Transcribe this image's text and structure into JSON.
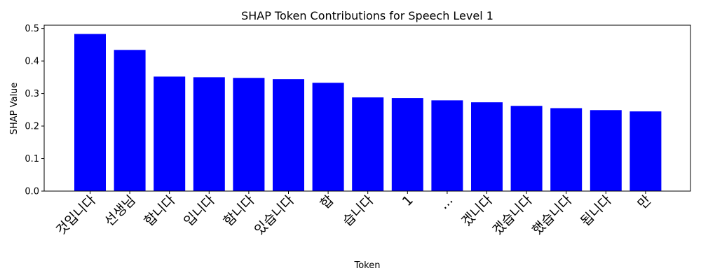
{
  "chart_data": {
    "type": "bar",
    "title": "SHAP Token Contributions for Speech Level 1",
    "xlabel": "Token",
    "ylabel": "SHAP Value",
    "categories": [
      "것입니다",
      "선생님",
      "합니다",
      "입니다",
      "함니다",
      "있습니다",
      "합",
      "습니다",
      "1",
      "...",
      "겠니다",
      "겠습니다",
      "했습니다",
      "됩니다",
      "만"
    ],
    "values": [
      0.483,
      0.434,
      0.352,
      0.35,
      0.348,
      0.344,
      0.333,
      0.288,
      0.286,
      0.279,
      0.273,
      0.262,
      0.255,
      0.249,
      0.245
    ],
    "ylim": [
      0,
      0.51
    ],
    "yticks": [
      0.0,
      0.1,
      0.2,
      0.3,
      0.4,
      0.5
    ],
    "ytick_labels": [
      "0.0",
      "0.1",
      "0.2",
      "0.3",
      "0.4",
      "0.5"
    ],
    "bar_color": "#0000ff",
    "grid": false,
    "legend": "none"
  }
}
